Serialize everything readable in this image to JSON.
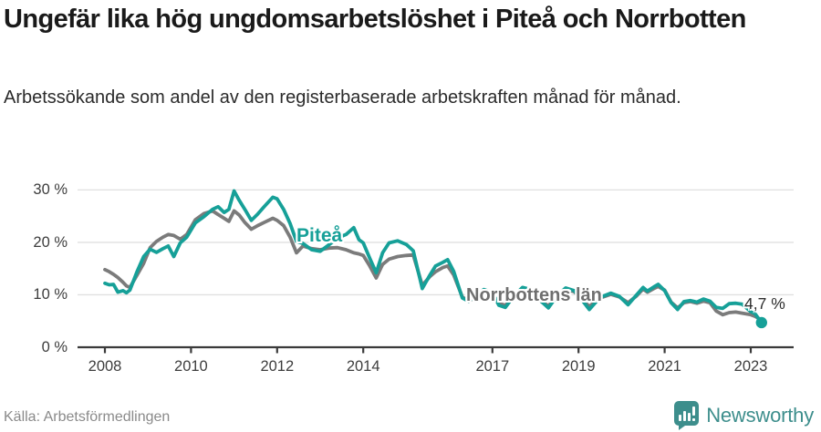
{
  "header": {
    "title": "Ungefär lika hög ungdomsarbetslöshet i Piteå och Norrbotten",
    "subtitle": "Arbetssökande som andel av den registerbaserade arbetskraften månad för månad."
  },
  "chart_data": {
    "type": "line",
    "unit": "%",
    "grid": true,
    "grid_color": "#e0e0e0",
    "axis_color": "#3a3a3a",
    "tick_label_color": "#3d3d3d",
    "x_axis": {
      "ticks": [
        2008,
        2010,
        2012,
        2014,
        2017,
        2019,
        2021,
        2023
      ],
      "range": [
        2007.4,
        2024.0
      ]
    },
    "y_axis": {
      "ticks": [
        0,
        10,
        20,
        30
      ],
      "labels": [
        "0 %",
        "10 %",
        "20 %",
        "30 %"
      ],
      "range": [
        0,
        33
      ]
    },
    "series": [
      {
        "name": "Piteå",
        "color": "#16a098",
        "end_label": "4,7 %",
        "end_dot": true,
        "x": [
          2008.0,
          2008.1,
          2008.2,
          2008.3,
          2008.42,
          2008.5,
          2008.58,
          2008.75,
          2008.9,
          2009.05,
          2009.2,
          2009.35,
          2009.47,
          2009.6,
          2009.75,
          2009.9,
          2010.1,
          2010.3,
          2010.5,
          2010.63,
          2010.77,
          2010.88,
          2011.0,
          2011.12,
          2011.25,
          2011.4,
          2011.55,
          2011.7,
          2011.9,
          2012.0,
          2012.15,
          2012.3,
          2012.45,
          2012.6,
          2012.8,
          2013.0,
          2013.2,
          2013.4,
          2013.6,
          2013.78,
          2013.9,
          2014.0,
          2014.15,
          2014.3,
          2014.45,
          2014.6,
          2014.8,
          2015.0,
          2015.16,
          2015.37,
          2015.55,
          2015.68,
          2015.85,
          2015.96,
          2016.1,
          2016.3,
          2016.45,
          2016.6,
          2016.8,
          2017.0,
          2017.15,
          2017.3,
          2017.5,
          2017.7,
          2017.9,
          2018.1,
          2018.3,
          2018.5,
          2018.7,
          2018.9,
          2019.1,
          2019.25,
          2019.5,
          2019.75,
          2019.95,
          2020.15,
          2020.35,
          2020.5,
          2020.6,
          2020.75,
          2020.85,
          2021.0,
          2021.15,
          2021.3,
          2021.45,
          2021.6,
          2021.75,
          2021.9,
          2022.05,
          2022.2,
          2022.35,
          2022.5,
          2022.65,
          2022.8,
          2023.0,
          2023.1,
          2023.25
        ],
        "values": [
          12.2,
          11.9,
          12.0,
          10.5,
          10.8,
          10.4,
          10.9,
          14.5,
          17.3,
          18.7,
          18.1,
          18.8,
          19.3,
          17.3,
          19.9,
          21.0,
          23.7,
          24.9,
          26.3,
          26.8,
          25.7,
          26.3,
          29.8,
          28.0,
          26.3,
          24.2,
          25.4,
          26.8,
          28.6,
          28.3,
          26.3,
          23.6,
          20.2,
          19.8,
          18.6,
          18.3,
          19.5,
          20.8,
          21.5,
          22.8,
          20.5,
          19.9,
          17.0,
          14.2,
          18.0,
          19.9,
          20.3,
          19.6,
          18.4,
          11.2,
          13.8,
          15.5,
          16.2,
          16.7,
          14.5,
          9.4,
          8.8,
          9.8,
          11.0,
          10.4,
          8.0,
          7.6,
          9.8,
          11.4,
          11.0,
          9.0,
          7.5,
          9.8,
          11.3,
          10.8,
          8.8,
          7.2,
          9.5,
          10.3,
          9.7,
          8.1,
          10.0,
          11.4,
          10.7,
          11.5,
          12.0,
          10.8,
          8.5,
          7.2,
          8.7,
          8.9,
          8.6,
          9.2,
          8.8,
          7.6,
          7.4,
          8.3,
          8.4,
          8.2,
          6.8,
          6.4,
          4.7
        ]
      },
      {
        "name": "Norrbottens län",
        "color": "#7b7b7b",
        "x": [
          2008.0,
          2008.1,
          2008.2,
          2008.3,
          2008.42,
          2008.5,
          2008.58,
          2008.75,
          2008.9,
          2009.05,
          2009.2,
          2009.35,
          2009.47,
          2009.6,
          2009.75,
          2009.9,
          2010.1,
          2010.3,
          2010.5,
          2010.63,
          2010.77,
          2010.88,
          2011.0,
          2011.12,
          2011.25,
          2011.4,
          2011.55,
          2011.7,
          2011.9,
          2012.0,
          2012.15,
          2012.3,
          2012.45,
          2012.6,
          2012.8,
          2013.0,
          2013.2,
          2013.4,
          2013.6,
          2013.78,
          2013.9,
          2014.0,
          2014.15,
          2014.3,
          2014.45,
          2014.6,
          2014.8,
          2015.0,
          2015.16,
          2015.37,
          2015.55,
          2015.68,
          2015.85,
          2015.96,
          2016.1,
          2016.3,
          2016.45,
          2016.6,
          2016.8,
          2017.0,
          2017.15,
          2017.3,
          2017.5,
          2017.7,
          2017.9,
          2018.1,
          2018.3,
          2018.5,
          2018.7,
          2018.9,
          2019.1,
          2019.25,
          2019.5,
          2019.75,
          2019.95,
          2020.15,
          2020.35,
          2020.5,
          2020.6,
          2020.75,
          2020.85,
          2021.0,
          2021.15,
          2021.3,
          2021.45,
          2021.6,
          2021.75,
          2021.9,
          2022.05,
          2022.2,
          2022.35,
          2022.5,
          2022.65,
          2022.8,
          2023.0,
          2023.1,
          2023.25
        ],
        "values": [
          14.8,
          14.4,
          13.9,
          13.3,
          12.4,
          11.7,
          11.4,
          13.8,
          16.0,
          19.0,
          20.2,
          21.0,
          21.5,
          21.3,
          20.6,
          21.5,
          24.3,
          25.5,
          26.0,
          25.3,
          24.6,
          24.0,
          26.0,
          25.2,
          23.8,
          22.5,
          23.2,
          23.8,
          24.6,
          24.2,
          23.2,
          21.0,
          18.0,
          19.3,
          18.8,
          18.6,
          18.9,
          19.0,
          18.6,
          18.0,
          17.8,
          17.5,
          15.5,
          13.2,
          15.8,
          16.8,
          17.3,
          17.5,
          17.6,
          11.8,
          13.5,
          14.4,
          15.2,
          15.5,
          13.8,
          9.6,
          8.8,
          9.5,
          10.6,
          10.1,
          8.4,
          8.0,
          9.6,
          11.0,
          10.7,
          8.9,
          7.9,
          9.6,
          11.0,
          10.6,
          8.9,
          7.8,
          9.4,
          10.1,
          9.6,
          8.5,
          9.8,
          11.1,
          10.5,
          11.2,
          11.6,
          10.9,
          8.6,
          7.5,
          8.5,
          8.7,
          8.4,
          8.8,
          8.5,
          6.9,
          6.2,
          6.6,
          6.7,
          6.5,
          6.2,
          5.9,
          5.2
        ]
      }
    ]
  },
  "footer": {
    "source": "Källa: Arbetsförmedlingen",
    "brand": "Newsworthy",
    "brand_color": "#3d8e8c"
  }
}
